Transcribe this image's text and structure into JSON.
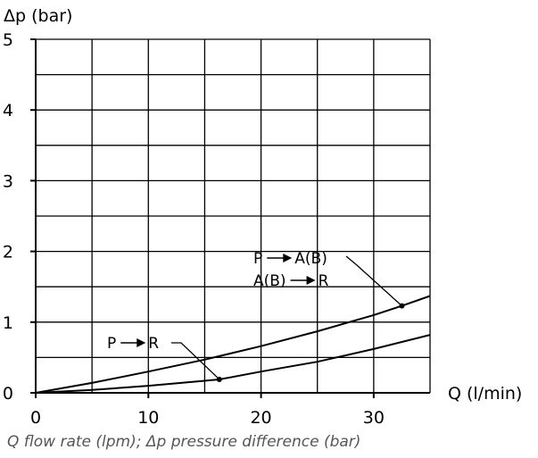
{
  "chart_data": {
    "type": "line",
    "ylabel": "Δp  (bar)",
    "xlabel": "Q  (l/min)",
    "xlim": [
      0,
      35
    ],
    "ylim": [
      0,
      5
    ],
    "x_ticks": [
      0,
      10,
      20,
      30
    ],
    "y_ticks": [
      0,
      1,
      2,
      3,
      4,
      5
    ],
    "grid": true,
    "legend": "none",
    "series": [
      {
        "labels": [
          "P ➞ A(B)",
          "A(B) ➞ R"
        ],
        "x": [
          0,
          5,
          10,
          15,
          20,
          25,
          30,
          32.5,
          35
        ],
        "y": [
          0,
          0.14,
          0.3,
          0.47,
          0.66,
          0.87,
          1.1,
          1.23,
          1.37
        ],
        "marker": {
          "x": 32.5,
          "y": 1.23
        }
      },
      {
        "labels": [
          "P ➞ R"
        ],
        "x": [
          0,
          5,
          10,
          15,
          16.3,
          20,
          25,
          30,
          35
        ],
        "y": [
          0,
          0.04,
          0.1,
          0.17,
          0.19,
          0.3,
          0.44,
          0.62,
          0.82
        ],
        "marker": {
          "x": 16.3,
          "y": 0.19
        }
      }
    ]
  },
  "caption": "Q flow rate (lpm); Δp pressure difference (bar)"
}
